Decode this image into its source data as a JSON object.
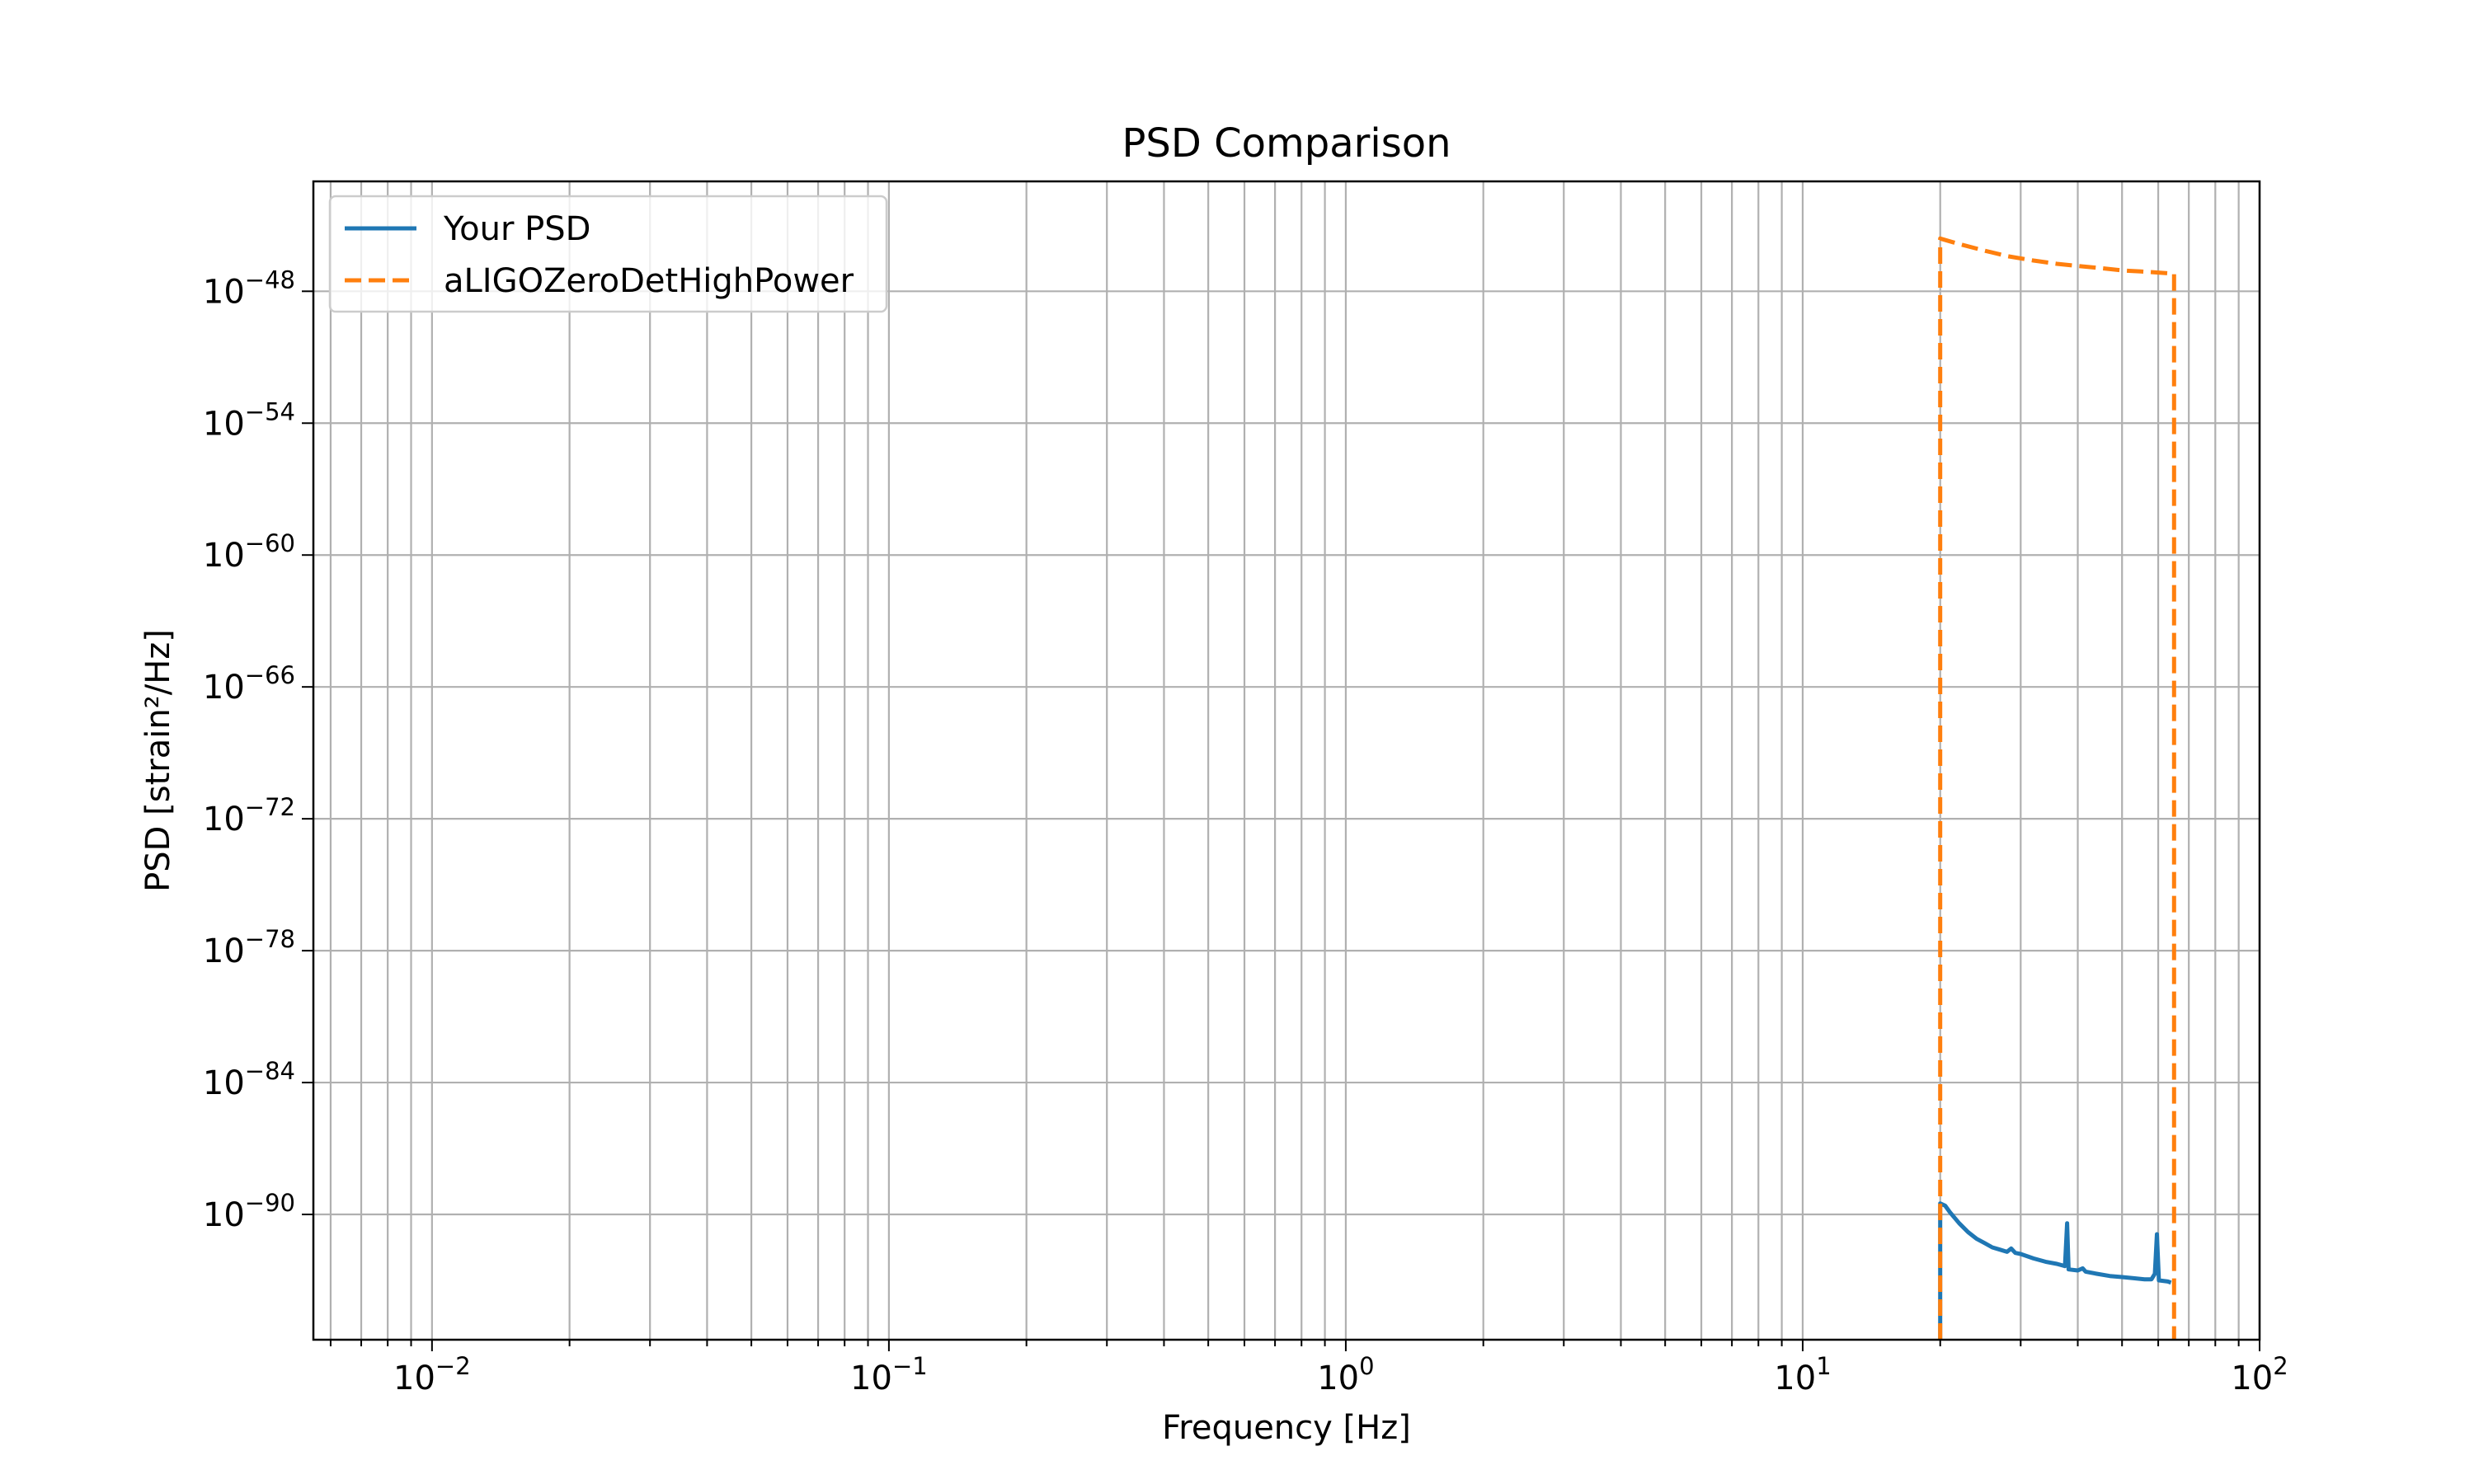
{
  "chart_data": {
    "type": "line",
    "title": "PSD Comparison",
    "xlabel": "Frequency [Hz]",
    "ylabel": "PSD [strain²/Hz]",
    "xscale": "log",
    "yscale": "log",
    "xlim": [
      0.0055,
      100
    ],
    "ylim_exponent": [
      -95.7,
      -43.0
    ],
    "grid": "both major and minor",
    "legend_position": "upper-left",
    "x_ticks": [
      {
        "base": "10",
        "exp": "−2",
        "value": 0.01
      },
      {
        "base": "10",
        "exp": "−1",
        "value": 0.1
      },
      {
        "base": "10",
        "exp": "0",
        "value": 1
      },
      {
        "base": "10",
        "exp": "1",
        "value": 10
      },
      {
        "base": "10",
        "exp": "2",
        "value": 100
      }
    ],
    "y_ticks": [
      {
        "base": "10",
        "exp": "−48",
        "value_exponent": -48
      },
      {
        "base": "10",
        "exp": "−54",
        "value_exponent": -54
      },
      {
        "base": "10",
        "exp": "−60",
        "value_exponent": -60
      },
      {
        "base": "10",
        "exp": "−66",
        "value_exponent": -66
      },
      {
        "base": "10",
        "exp": "−72",
        "value_exponent": -72
      },
      {
        "base": "10",
        "exp": "−78",
        "value_exponent": -78
      },
      {
        "base": "10",
        "exp": "−84",
        "value_exponent": -84
      },
      {
        "base": "10",
        "exp": "−90",
        "value_exponent": -90
      }
    ],
    "series": [
      {
        "name": "Your PSD",
        "color": "#1f77b4",
        "style": "solid",
        "y_is_log10": true,
        "points": [
          [
            20,
            -95.7
          ],
          [
            20,
            -89.5
          ],
          [
            20.5,
            -89.6
          ],
          [
            21,
            -89.9
          ],
          [
            22,
            -90.4
          ],
          [
            23,
            -90.8
          ],
          [
            24,
            -91.1
          ],
          [
            25,
            -91.3
          ],
          [
            26,
            -91.5
          ],
          [
            27,
            -91.6
          ],
          [
            28,
            -91.7
          ],
          [
            28.6,
            -91.55
          ],
          [
            29.2,
            -91.75
          ],
          [
            30,
            -91.8
          ],
          [
            32,
            -92.0
          ],
          [
            34,
            -92.15
          ],
          [
            36,
            -92.25
          ],
          [
            37.5,
            -92.35
          ],
          [
            37.9,
            -90.4
          ],
          [
            38.2,
            -92.5
          ],
          [
            40,
            -92.55
          ],
          [
            41,
            -92.45
          ],
          [
            41.6,
            -92.6
          ],
          [
            44,
            -92.7
          ],
          [
            47,
            -92.8
          ],
          [
            50,
            -92.85
          ],
          [
            53,
            -92.9
          ],
          [
            56,
            -92.95
          ],
          [
            58,
            -92.95
          ],
          [
            59,
            -92.7
          ],
          [
            59.6,
            -90.9
          ],
          [
            60.2,
            -93.0
          ],
          [
            63,
            -93.05
          ],
          [
            64,
            -93.1
          ]
        ]
      },
      {
        "name": "aLIGOZeroDetHighPower",
        "color": "#ff7f0e",
        "style": "dashed",
        "y_is_log10": true,
        "points": [
          [
            20,
            -95.7
          ],
          [
            20,
            -45.6
          ],
          [
            22,
            -45.85
          ],
          [
            25,
            -46.15
          ],
          [
            28,
            -46.4
          ],
          [
            32,
            -46.6
          ],
          [
            36,
            -46.75
          ],
          [
            40,
            -46.85
          ],
          [
            45,
            -46.95
          ],
          [
            50,
            -47.05
          ],
          [
            55,
            -47.1
          ],
          [
            60,
            -47.15
          ],
          [
            65,
            -47.2
          ],
          [
            65,
            -95.7
          ]
        ]
      }
    ]
  }
}
